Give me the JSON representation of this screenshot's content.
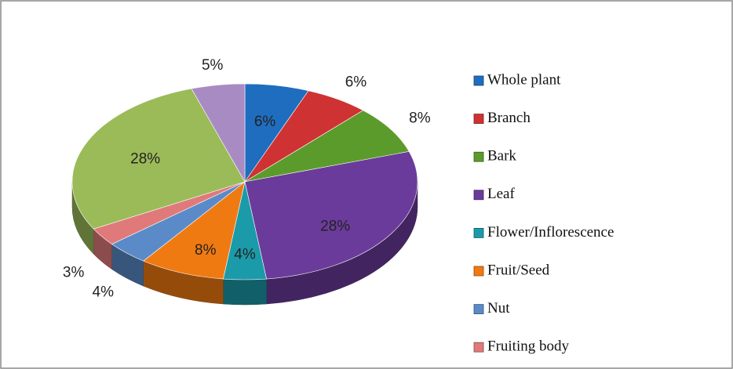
{
  "chart_data": {
    "type": "pie",
    "categories": [
      "Whole plant",
      "Branch",
      "Bark",
      "Leaf",
      "Flower/Inflorescence",
      "Fruit/Seed",
      "Nut",
      "Fruiting body",
      null,
      null
    ],
    "values": [
      6,
      6,
      8,
      28,
      4,
      8,
      4,
      3,
      28,
      5
    ],
    "value_labels": [
      "6%",
      "6%",
      "8%",
      "28%",
      "4%",
      "8%",
      "4%",
      "3%",
      "28%",
      "5%"
    ],
    "colors": [
      "#1f6dbf",
      "#cf3232",
      "#5b9b2b",
      "#6b3b9b",
      "#1b9aaa",
      "#f07a12",
      "#5a8bc8",
      "#e07a7a",
      "#9bbb59",
      "#a98bc3"
    ],
    "legend": "right"
  }
}
